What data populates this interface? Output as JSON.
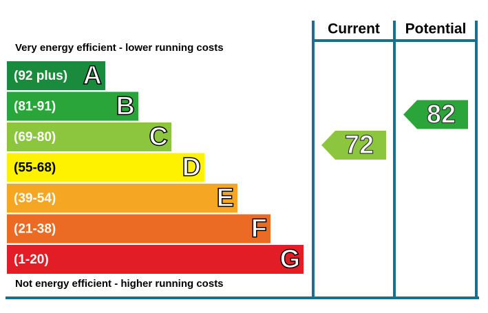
{
  "chart_data": {
    "type": "epc",
    "top_label": "Very energy efficient - lower running costs",
    "bottom_label": "Not energy efficient - higher running costs",
    "bands": [
      {
        "range": "(92 plus)",
        "letter": "A",
        "color": "#1a8a3c",
        "text_color": "#ffffff"
      },
      {
        "range": "(81-91)",
        "letter": "B",
        "color": "#2aa53a",
        "text_color": "#ffffff"
      },
      {
        "range": "(69-80)",
        "letter": "C",
        "color": "#8cc63f",
        "text_color": "#ffffff"
      },
      {
        "range": "(55-68)",
        "letter": "D",
        "color": "#fff200",
        "text_color": "#000000"
      },
      {
        "range": "(39-54)",
        "letter": "E",
        "color": "#f5a623",
        "text_color": "#ffffff"
      },
      {
        "range": "(21-38)",
        "letter": "F",
        "color": "#ec6b24",
        "text_color": "#ffffff"
      },
      {
        "range": "(1-20)",
        "letter": "G",
        "color": "#e31d25",
        "text_color": "#ffffff"
      }
    ],
    "ratings": [
      {
        "name": "Current",
        "value": 72
      },
      {
        "name": "Potential",
        "value": 82
      }
    ],
    "frame_color": "#1b6f8e"
  }
}
